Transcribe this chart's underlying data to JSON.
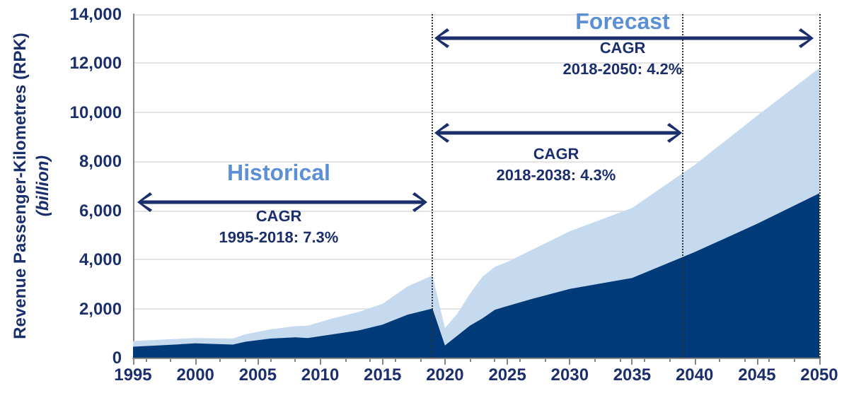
{
  "chart_data": {
    "type": "area",
    "stacked": true,
    "ylabel": "Revenue Passenger-Kilometres (RPK)\n(billion)",
    "x": [
      1995,
      1997,
      2000,
      2003,
      2004,
      2006,
      2008,
      2009,
      2011,
      2013,
      2015,
      2017,
      2019,
      2020,
      2021,
      2022,
      2023,
      2024,
      2025,
      2027,
      2030,
      2035,
      2040,
      2045,
      2050
    ],
    "series": [
      {
        "color": "#003a78",
        "values": [
          450,
          500,
          580,
          530,
          650,
          780,
          830,
          800,
          950,
          1100,
          1350,
          1750,
          2000,
          500,
          900,
          1300,
          1600,
          1950,
          2100,
          2400,
          2800,
          3250,
          4300,
          5450,
          6700
        ]
      },
      {
        "color": "#c5d9ef",
        "values": [
          230,
          230,
          220,
          250,
          300,
          370,
          450,
          500,
          650,
          750,
          850,
          1150,
          1350,
          700,
          900,
          1300,
          1700,
          1750,
          1800,
          2000,
          2350,
          2850,
          3550,
          4400,
          5100
        ]
      }
    ],
    "xlim": [
      1995,
      2050
    ],
    "xticks": [
      1995,
      2000,
      2005,
      2010,
      2015,
      2020,
      2025,
      2030,
      2035,
      2040,
      2045,
      2050
    ],
    "ylim": [
      0,
      14000
    ],
    "yticks": [
      {
        "value": 0,
        "label": "0"
      },
      {
        "value": 2000,
        "label": "2,000"
      },
      {
        "value": 4000,
        "label": "4,000"
      },
      {
        "value": 6000,
        "label": "6,000"
      },
      {
        "value": 8000,
        "label": "8,000"
      },
      {
        "value": 10000,
        "label": "10,000"
      },
      {
        "value": 12000,
        "label": "12,000"
      },
      {
        "value": 14000,
        "label": "14,000"
      }
    ],
    "grid": "y",
    "ref_lines": [
      {
        "axis": "x",
        "value": 2019,
        "color": "#333333",
        "line_style": "dotted"
      },
      {
        "axis": "x",
        "value": 2039,
        "color": "#333333",
        "line_style": "dotted"
      },
      {
        "axis": "x",
        "value": 2050,
        "color": "#333333",
        "line_style": "dotted"
      }
    ],
    "annotations": [
      "Historical",
      "CAGR\n1995-2018: 7.3%",
      "Forecast",
      "CAGR\n2018-2050: 4.2%",
      "CAGR\n2018-2038: 4.3%"
    ]
  }
}
